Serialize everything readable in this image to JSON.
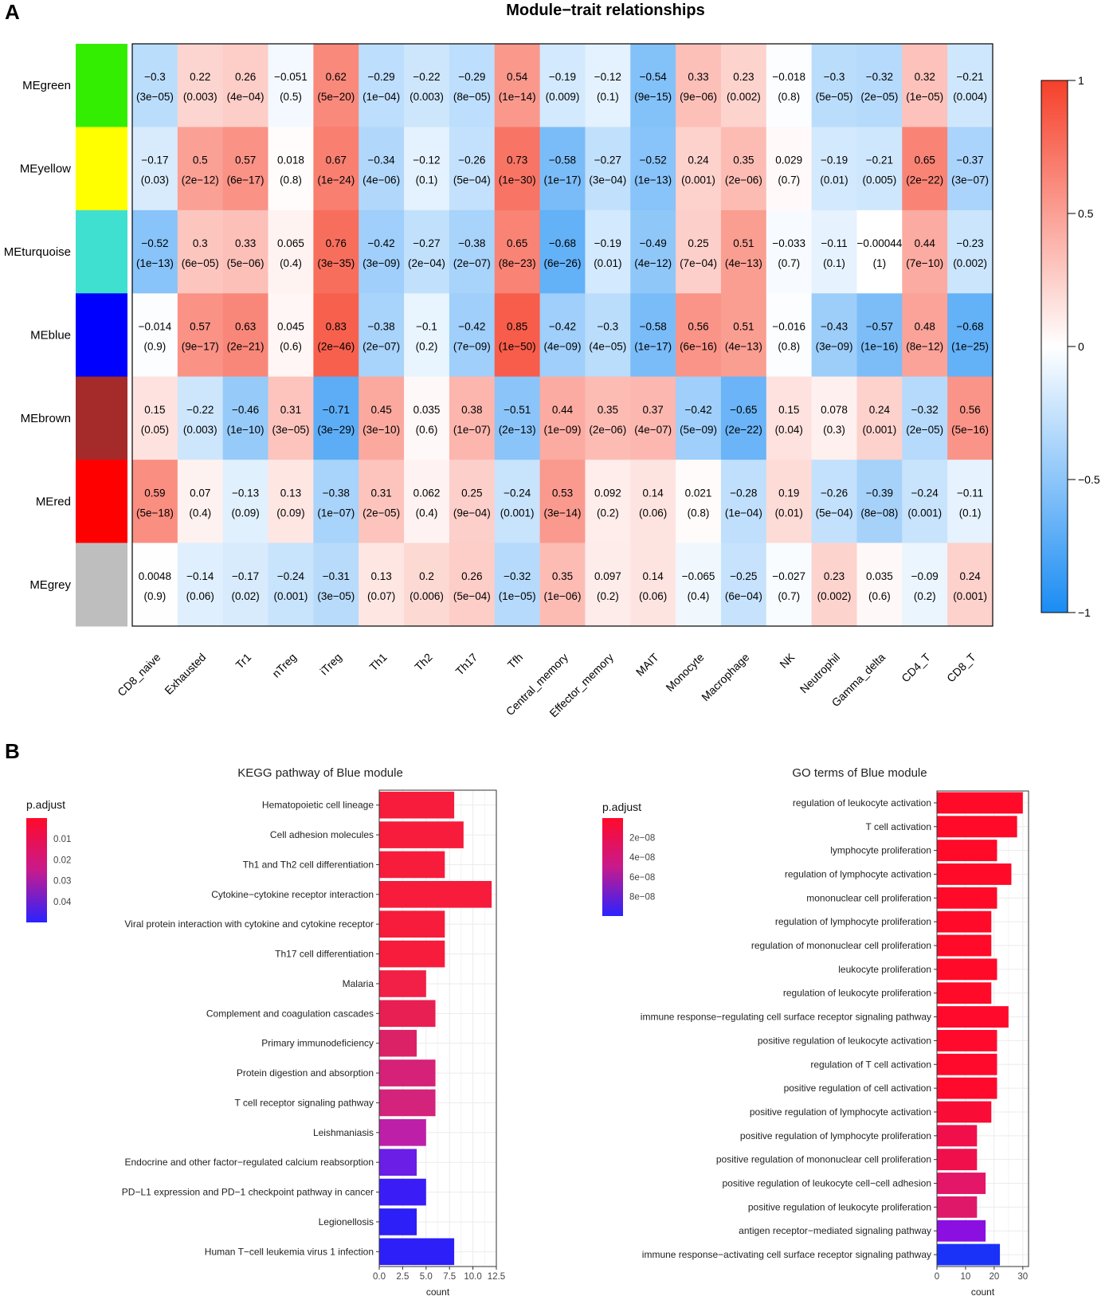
{
  "chart_data": [
    {
      "type": "heatmap",
      "panel": "A",
      "title": "Module−trait relationships",
      "rows": [
        "MEgreen",
        "MEyellow",
        "MEturquoise",
        "MEblue",
        "MEbrown",
        "MEred",
        "MEgrey"
      ],
      "row_colors": [
        "#33ee00",
        "#ffff00",
        "#40e0d0",
        "#0000ff",
        "#a52a2a",
        "#ff0000",
        "#bebebe"
      ],
      "columns": [
        "CD8_naive",
        "Exhausted",
        "Tr1",
        "nTreg",
        "iTreg",
        "Th1",
        "Th2",
        "Th17",
        "Tfh",
        "Central_memory",
        "Effector_memory",
        "MAIT",
        "Monocyte",
        "Macrophage",
        "NK",
        "Neutrophil",
        "Gamma_delta",
        "CD4_T",
        "CD8_T"
      ],
      "values": [
        [
          -0.3,
          0.22,
          0.26,
          -0.051,
          0.62,
          -0.29,
          -0.22,
          -0.29,
          0.54,
          -0.19,
          -0.12,
          -0.54,
          0.33,
          0.23,
          -0.018,
          -0.3,
          -0.32,
          0.32,
          -0.21
        ],
        [
          -0.17,
          0.5,
          0.57,
          0.018,
          0.67,
          -0.34,
          -0.12,
          -0.26,
          0.73,
          -0.58,
          -0.27,
          -0.52,
          0.24,
          0.35,
          0.029,
          -0.19,
          -0.21,
          0.65,
          -0.37
        ],
        [
          -0.52,
          0.3,
          0.33,
          0.065,
          0.76,
          -0.42,
          -0.27,
          -0.38,
          0.65,
          -0.68,
          -0.19,
          -0.49,
          0.25,
          0.51,
          -0.033,
          -0.11,
          -0.00044,
          0.44,
          -0.23
        ],
        [
          -0.014,
          0.57,
          0.63,
          0.045,
          0.83,
          -0.38,
          -0.1,
          -0.42,
          0.85,
          -0.42,
          -0.3,
          -0.58,
          0.56,
          0.51,
          -0.016,
          -0.43,
          -0.57,
          0.48,
          -0.68
        ],
        [
          0.15,
          -0.22,
          -0.46,
          0.31,
          -0.71,
          0.45,
          0.035,
          0.38,
          -0.51,
          0.44,
          0.35,
          0.37,
          -0.42,
          -0.65,
          0.15,
          0.078,
          0.24,
          -0.32,
          0.56
        ],
        [
          0.59,
          0.07,
          -0.13,
          0.13,
          -0.38,
          0.31,
          0.062,
          0.25,
          -0.24,
          0.53,
          0.092,
          0.14,
          0.021,
          -0.28,
          0.19,
          -0.26,
          -0.39,
          -0.24,
          -0.11
        ],
        [
          0.0048,
          -0.14,
          -0.17,
          -0.24,
          -0.31,
          0.13,
          0.2,
          0.26,
          -0.32,
          0.35,
          0.097,
          0.14,
          -0.065,
          -0.25,
          -0.027,
          0.23,
          0.035,
          -0.09,
          0.24
        ]
      ],
      "labels": [
        [
          "−0.3",
          "0.22",
          "0.26",
          "−0.051",
          "0.62",
          "−0.29",
          "−0.22",
          "−0.29",
          "0.54",
          "−0.19",
          "−0.12",
          "−0.54",
          "0.33",
          "0.23",
          "−0.018",
          "−0.3",
          "−0.32",
          "0.32",
          "−0.21"
        ],
        [
          "−0.17",
          "0.5",
          "0.57",
          "0.018",
          "0.67",
          "−0.34",
          "−0.12",
          "−0.26",
          "0.73",
          "−0.58",
          "−0.27",
          "−0.52",
          "0.24",
          "0.35",
          "0.029",
          "−0.19",
          "−0.21",
          "0.65",
          "−0.37"
        ],
        [
          "−0.52",
          "0.3",
          "0.33",
          "0.065",
          "0.76",
          "−0.42",
          "−0.27",
          "−0.38",
          "0.65",
          "−0.68",
          "−0.19",
          "−0.49",
          "0.25",
          "0.51",
          "−0.033",
          "−0.11",
          "−0.00044",
          "0.44",
          "−0.23"
        ],
        [
          "−0.014",
          "0.57",
          "0.63",
          "0.045",
          "0.83",
          "−0.38",
          "−0.1",
          "−0.42",
          "0.85",
          "−0.42",
          "−0.3",
          "−0.58",
          "0.56",
          "0.51",
          "−0.016",
          "−0.43",
          "−0.57",
          "0.48",
          "−0.68"
        ],
        [
          "0.15",
          "−0.22",
          "−0.46",
          "0.31",
          "−0.71",
          "0.45",
          "0.035",
          "0.38",
          "−0.51",
          "0.44",
          "0.35",
          "0.37",
          "−0.42",
          "−0.65",
          "0.15",
          "0.078",
          "0.24",
          "−0.32",
          "0.56"
        ],
        [
          "0.59",
          "0.07",
          "−0.13",
          "0.13",
          "−0.38",
          "0.31",
          "0.062",
          "0.25",
          "−0.24",
          "0.53",
          "0.092",
          "0.14",
          "0.021",
          "−0.28",
          "0.19",
          "−0.26",
          "−0.39",
          "−0.24",
          "−0.11"
        ],
        [
          "0.0048",
          "−0.14",
          "−0.17",
          "−0.24",
          "−0.31",
          "0.13",
          "0.2",
          "0.26",
          "−0.32",
          "0.35",
          "0.097",
          "0.14",
          "−0.065",
          "−0.25",
          "−0.027",
          "0.23",
          "0.035",
          "−0.09",
          "0.24"
        ]
      ],
      "pvalues": [
        [
          "(3e−05)",
          "(0.003)",
          "(4e−04)",
          "(0.5)",
          "(5e−20)",
          "(1e−04)",
          "(0.003)",
          "(8e−05)",
          "(1e−14)",
          "(0.009)",
          "(0.1)",
          "(9e−15)",
          "(9e−06)",
          "(0.002)",
          "(0.8)",
          "(5e−05)",
          "(2e−05)",
          "(1e−05)",
          "(0.004)"
        ],
        [
          "(0.03)",
          "(2e−12)",
          "(6e−17)",
          "(0.8)",
          "(1e−24)",
          "(4e−06)",
          "(0.1)",
          "(5e−04)",
          "(1e−30)",
          "(1e−17)",
          "(3e−04)",
          "(1e−13)",
          "(0.001)",
          "(2e−06)",
          "(0.7)",
          "(0.01)",
          "(0.005)",
          "(2e−22)",
          "(3e−07)"
        ],
        [
          "(1e−13)",
          "(6e−05)",
          "(5e−06)",
          "(0.4)",
          "(3e−35)",
          "(3e−09)",
          "(2e−04)",
          "(2e−07)",
          "(8e−23)",
          "(6e−26)",
          "(0.01)",
          "(4e−12)",
          "(7e−04)",
          "(4e−13)",
          "(0.7)",
          "(0.1)",
          "(1)",
          "(7e−10)",
          "(0.002)"
        ],
        [
          "(0.9)",
          "(9e−17)",
          "(2e−21)",
          "(0.6)",
          "(2e−46)",
          "(2e−07)",
          "(0.2)",
          "(7e−09)",
          "(1e−50)",
          "(4e−09)",
          "(4e−05)",
          "(1e−17)",
          "(6e−16)",
          "(4e−13)",
          "(0.8)",
          "(3e−09)",
          "(1e−16)",
          "(8e−12)",
          "(1e−25)"
        ],
        [
          "(0.05)",
          "(0.003)",
          "(1e−10)",
          "(3e−05)",
          "(3e−29)",
          "(3e−10)",
          "(0.6)",
          "(1e−07)",
          "(2e−13)",
          "(1e−09)",
          "(2e−06)",
          "(4e−07)",
          "(5e−09)",
          "(2e−22)",
          "(0.04)",
          "(0.3)",
          "(0.001)",
          "(2e−05)",
          "(5e−16)"
        ],
        [
          "(5e−18)",
          "(0.4)",
          "(0.09)",
          "(0.09)",
          "(1e−07)",
          "(2e−05)",
          "(0.4)",
          "(9e−04)",
          "(0.001)",
          "(3e−14)",
          "(0.2)",
          "(0.06)",
          "(0.8)",
          "(1e−04)",
          "(0.01)",
          "(5e−04)",
          "(8e−08)",
          "(0.001)",
          "(0.1)"
        ],
        [
          "(0.9)",
          "(0.06)",
          "(0.02)",
          "(0.001)",
          "(3e−05)",
          "(0.07)",
          "(0.006)",
          "(5e−04)",
          "(1e−05)",
          "(1e−06)",
          "(0.2)",
          "(0.06)",
          "(0.4)",
          "(6e−04)",
          "(0.7)",
          "(0.002)",
          "(0.6)",
          "(0.2)",
          "(0.001)"
        ]
      ],
      "colorbar": {
        "range": [
          -1,
          1
        ],
        "ticks": [
          "1",
          "0.5",
          "0",
          "−0.5",
          "−1"
        ],
        "tick_values": [
          1,
          0.5,
          0,
          -0.5,
          -1
        ]
      }
    },
    {
      "type": "bar",
      "panel": "B",
      "orientation": "horizontal",
      "title": "KEGG pathway of Blue module",
      "xlabel": "count",
      "xlim": [
        0,
        12.5
      ],
      "xticks": [
        "0.0",
        "2.5",
        "5.0",
        "7.5",
        "10.0",
        "12.5"
      ],
      "xtick_values": [
        0,
        2.5,
        5,
        7.5,
        10,
        12.5
      ],
      "categories": [
        "Hematopoietic cell lineage",
        "Cell adhesion molecules",
        "Th1 and Th2 cell differentiation",
        "Cytokine−cytokine receptor interaction",
        "Viral protein interaction with cytokine and cytokine receptor",
        "Th17 cell differentiation",
        "Malaria",
        "Complement and coagulation cascades",
        "Primary immunodeficiency",
        "Protein digestion and absorption",
        "T cell receptor signaling pathway",
        "Leishmaniasis",
        "Endocrine and other factor−regulated calcium reabsorption",
        "PD−L1 expression and PD−1 checkpoint pathway in cancer",
        "Legionellosis",
        "Human T−cell leukemia virus 1 infection"
      ],
      "values": [
        8,
        9,
        7,
        12,
        7,
        7,
        5,
        6,
        4,
        6,
        6,
        5,
        4,
        5,
        4,
        8
      ],
      "colors": [
        "#f71c3b",
        "#f71c3b",
        "#f71c3b",
        "#f71c3b",
        "#f71c3b",
        "#f71c3b",
        "#f21f46",
        "#e81f52",
        "#dc2267",
        "#d52177",
        "#d3237b",
        "#be1fa8",
        "#6a1ee6",
        "#3a1cf6",
        "#2d1ff7",
        "#2d1ff7"
      ],
      "legend": {
        "title": "p.adjust",
        "ticks": [
          "0.01",
          "0.02",
          "0.03",
          "0.04"
        ]
      }
    },
    {
      "type": "bar",
      "panel": "B",
      "orientation": "horizontal",
      "title": "GO terms of Blue module",
      "xlabel": "count",
      "xlim": [
        0,
        32
      ],
      "xticks": [
        "0",
        "10",
        "20",
        "30"
      ],
      "xtick_values": [
        0,
        10,
        20,
        30
      ],
      "categories": [
        "regulation of leukocyte activation",
        "T cell activation",
        "lymphocyte proliferation",
        "regulation of lymphocyte activation",
        "mononuclear cell proliferation",
        "regulation of lymphocyte proliferation",
        "regulation of mononuclear cell proliferation",
        "leukocyte proliferation",
        "regulation of leukocyte proliferation",
        "immune response−regulating cell surface receptor signaling pathway",
        "positive regulation of leukocyte activation",
        "regulation of T cell activation",
        "positive regulation of cell activation",
        "positive regulation of lymphocyte activation",
        "positive regulation of lymphocyte proliferation",
        "positive regulation of mononuclear cell proliferation",
        "positive regulation of leukocyte cell−cell adhesion",
        "positive regulation of leukocyte proliferation",
        "antigen receptor−mediated signaling pathway",
        "immune response−activating cell surface receptor signaling pathway"
      ],
      "values": [
        30,
        28,
        21,
        26,
        21,
        19,
        19,
        21,
        19,
        25,
        21,
        21,
        21,
        19,
        14,
        14,
        17,
        14,
        17,
        22
      ],
      "colors": [
        "#ff0a28",
        "#ff0a28",
        "#ff0a28",
        "#ff0a28",
        "#ff0a28",
        "#ff0a28",
        "#ff0a28",
        "#ff0a28",
        "#ff0a28",
        "#ff0a2d",
        "#ff0a2d",
        "#ff0a2d",
        "#ff0a2d",
        "#f90c36",
        "#f00f4b",
        "#f00f4b",
        "#e31668",
        "#e0186a",
        "#8a0fe0",
        "#1a32f8"
      ],
      "legend": {
        "title": "p.adjust",
        "ticks": [
          "2e−08",
          "4e−08",
          "6e−08",
          "8e−08"
        ]
      }
    }
  ],
  "panel_letters": {
    "a": "A",
    "b": "B"
  }
}
